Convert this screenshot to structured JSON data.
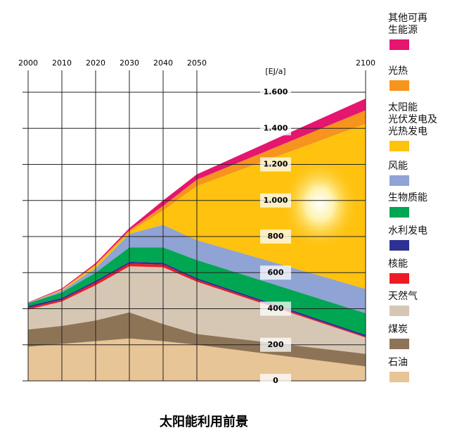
{
  "chart_data": {
    "type": "stacked_area",
    "title": "太阳能利用前景",
    "y_axis_label": "[EJ/a]",
    "x": [
      2000,
      2010,
      2020,
      2030,
      2040,
      2050,
      2100
    ],
    "xlim": [
      2000,
      2100
    ],
    "xticks": [
      2000,
      2010,
      2020,
      2030,
      2040,
      2050,
      2100
    ],
    "ylim": [
      0,
      1600
    ],
    "yticks": [
      0,
      200,
      400,
      600,
      800,
      {
        "value": 1000,
        "label": "1.000"
      },
      {
        "value": 1200,
        "label": "1.200"
      },
      {
        "value": 1400,
        "label": "1.400"
      },
      {
        "value": 1600,
        "label": "1.600"
      }
    ],
    "grid": true,
    "legend": "right",
    "series": [
      {
        "name": "石油",
        "color": "#e8c596",
        "values": [
          190,
          205,
          220,
          235,
          220,
          200,
          80
        ]
      },
      {
        "name": "煤炭",
        "color": "#8e7456",
        "values": [
          95,
          100,
          115,
          145,
          95,
          60,
          70
        ]
      },
      {
        "name": "天然气",
        "color": "#d6c7b4",
        "values": [
          110,
          135,
          195,
          255,
          315,
          290,
          90
        ]
      },
      {
        "name": "核能",
        "color": "#ed1c24",
        "values": [
          10,
          10,
          15,
          15,
          15,
          10,
          5
        ]
      },
      {
        "name": "水利发电",
        "color": "#2e3192",
        "values": [
          10,
          10,
          10,
          10,
          10,
          10,
          10
        ]
      },
      {
        "name": "生物质能",
        "color": "#00a651",
        "values": [
          15,
          30,
          45,
          80,
          85,
          100,
          120
        ]
      },
      {
        "name": "风能",
        "color": "#8fa3d4",
        "values": [
          2,
          10,
          25,
          75,
          125,
          110,
          135
        ]
      },
      {
        "name": "太阳能\n光伏发电及\n光热发电",
        "color": "#ffc20e",
        "values": [
          0,
          5,
          15,
          10,
          80,
          300,
          915
        ]
      },
      {
        "name": "光热",
        "color": "#f7941d",
        "values": [
          0,
          2,
          5,
          10,
          25,
          35,
          75
        ]
      },
      {
        "name": "其他可再\n生能源",
        "color": "#e4166f",
        "values": [
          3,
          5,
          8,
          12,
          30,
          30,
          65
        ]
      }
    ]
  }
}
